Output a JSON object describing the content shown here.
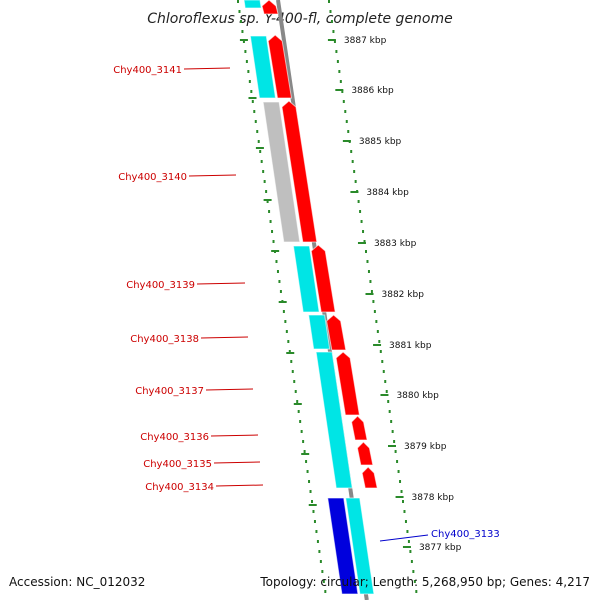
{
  "title": "Chloroflexus sp. Y-400-fl, complete genome",
  "footer": {
    "accession": "Accession: NC_012032",
    "summary": "Topology: circular; Length: 5,268,950 bp; Genes: 4,217"
  },
  "colors": {
    "forward_cds": "#ff0000",
    "reverse_cds": "#00e5e5",
    "reverse_gray": "#bfbfbf",
    "forward_blue": "#0000dd",
    "label_forward": "#cc0000",
    "label_reverse": "#0000cc",
    "backbone": "#888888",
    "tick": "#2a8a2a"
  },
  "scale_labels": [
    "3887 kbp",
    "3886 kbp",
    "3885 kbp",
    "3884 kbp",
    "3883 kbp",
    "3882 kbp",
    "3881 kbp",
    "3880 kbp",
    "3879 kbp",
    "3878 kbp",
    "3877 kbp"
  ],
  "gene_labels": [
    {
      "text": "Chy400_3141",
      "strand": "forward"
    },
    {
      "text": "Chy400_3140",
      "strand": "forward"
    },
    {
      "text": "Chy400_3139",
      "strand": "forward"
    },
    {
      "text": "Chy400_3138",
      "strand": "forward"
    },
    {
      "text": "Chy400_3137",
      "strand": "forward"
    },
    {
      "text": "Chy400_3136",
      "strand": "forward"
    },
    {
      "text": "Chy400_3135",
      "strand": "forward"
    },
    {
      "text": "Chy400_3134",
      "strand": "forward"
    },
    {
      "text": "Chy400_3133",
      "strand": "reverse"
    }
  ]
}
